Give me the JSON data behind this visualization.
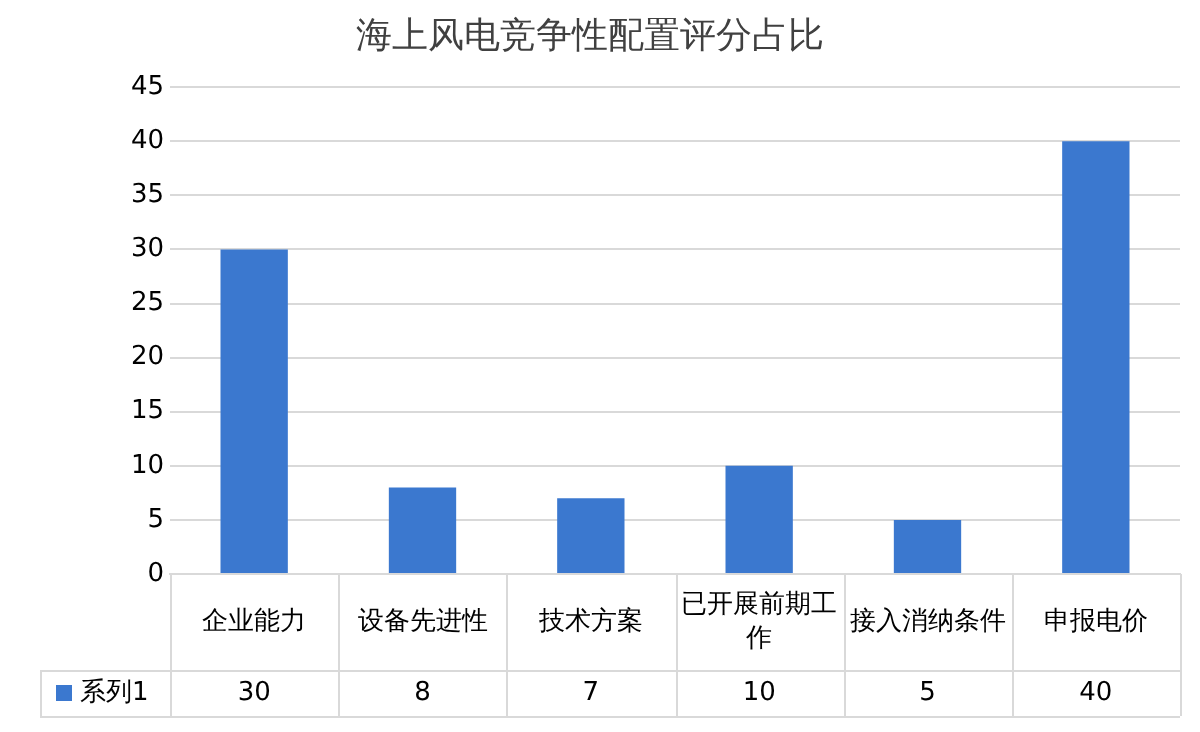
{
  "chart_data": {
    "type": "bar",
    "title": "海上风电竞争性配置评分占比",
    "categories": [
      "企业能力",
      "设备先进性",
      "技术方案",
      "已开展前期工作",
      "接入消纳条件",
      "申报电价"
    ],
    "series": [
      {
        "name": "系列1",
        "color": "#3b78cf",
        "values": [
          30,
          8,
          7,
          10,
          5,
          40
        ]
      }
    ],
    "ylim": [
      0,
      45
    ],
    "yticks": [
      0,
      5,
      10,
      15,
      20,
      25,
      30,
      35,
      40,
      45
    ],
    "grid": "y",
    "data_labels": true
  }
}
